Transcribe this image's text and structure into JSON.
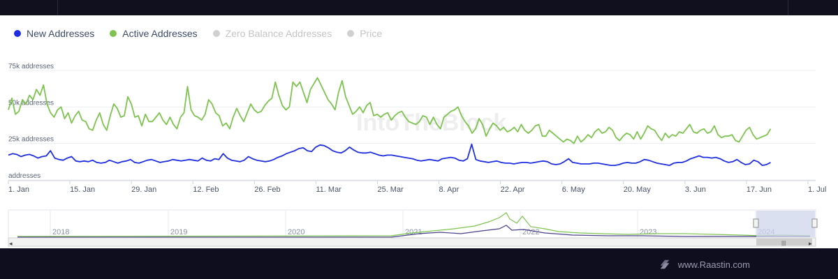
{
  "legend": [
    {
      "label": "New Addresses",
      "color": "#1e2ee0",
      "active": true
    },
    {
      "label": "Active Addresses",
      "color": "#7cc44e",
      "active": true
    },
    {
      "label": "Zero Balance Addresses",
      "color": "#c8c8c8",
      "active": false
    },
    {
      "label": "Price",
      "color": "#c8c8c8",
      "active": false
    }
  ],
  "watermark": "IntoTheBlock",
  "brand": {
    "text": "www.Raastin.com"
  },
  "navigator": {
    "years": [
      "2018",
      "2019",
      "2020",
      "2021",
      "2022",
      "2023",
      "2024"
    ],
    "scroll_handle": "|||"
  },
  "chart_data": {
    "type": "line",
    "title": "",
    "xlabel": "",
    "ylabel": "addresses",
    "ylim": [
      0,
      75000
    ],
    "ytick_values": [
      0,
      25000,
      50000,
      75000
    ],
    "ytick_labels": [
      "addresses",
      "25k addresses",
      "50k addresses",
      "75k addresses"
    ],
    "xlim": [
      0,
      182
    ],
    "xtick_days": [
      0,
      14,
      28,
      42,
      56,
      70,
      84,
      98,
      112,
      126,
      140,
      154,
      168,
      182
    ],
    "xtick_labels": [
      "1. Jan",
      "15. Jan",
      "29. Jan",
      "12. Feb",
      "26. Feb",
      "11. Mar",
      "25. Mar",
      "8. Apr",
      "22. Apr",
      "6. May",
      "20. May",
      "3. Jun",
      "17. Jun",
      "1. Jul"
    ],
    "series": [
      {
        "name": "Active Addresses",
        "color": "#7cc44e",
        "values": [
          48000,
          56000,
          45000,
          47000,
          55000,
          52000,
          58000,
          55000,
          62000,
          58000,
          65000,
          52000,
          46000,
          43000,
          48000,
          50000,
          42000,
          46000,
          39000,
          44000,
          47000,
          41000,
          40000,
          35000,
          34000,
          41000,
          46000,
          38000,
          34000,
          44000,
          52000,
          49000,
          43000,
          44000,
          57000,
          52000,
          43000,
          44000,
          37000,
          45000,
          40000,
          40000,
          43000,
          46000,
          41000,
          38000,
          43000,
          38000,
          35000,
          43000,
          46000,
          64000,
          48000,
          44000,
          43000,
          41000,
          45000,
          55000,
          52000,
          46000,
          44000,
          37000,
          39000,
          35000,
          43000,
          49000,
          44000,
          40000,
          46000,
          52000,
          48000,
          46000,
          47000,
          51000,
          54000,
          56000,
          67000,
          58000,
          51000,
          48000,
          50000,
          67000,
          64000,
          67000,
          60000,
          53000,
          62000,
          66000,
          70000,
          65000,
          60000,
          55000,
          52000,
          48000,
          60000,
          68000,
          57000,
          51000,
          45000,
          47000,
          50000,
          46000,
          51000,
          53000,
          44000,
          45000,
          43000,
          45000,
          46000,
          41000,
          44000,
          46000,
          47000,
          43000,
          40000,
          39000,
          38000,
          40000,
          44000,
          43000,
          38000,
          43000,
          38000,
          35000,
          43000,
          45000,
          47000,
          48000,
          50000,
          44000,
          40000,
          37000,
          32000,
          35000,
          42000,
          38000,
          30000,
          35000,
          39000,
          37000,
          34000,
          36000,
          33000,
          34000,
          36000,
          33000,
          38000,
          34000,
          32000,
          34000,
          37000,
          38000,
          30000,
          30000,
          34000,
          32000,
          30000,
          28000,
          26000,
          28000,
          27000,
          25000,
          30000,
          26000,
          28000,
          31000,
          29000,
          33000,
          35000,
          32000,
          33000,
          36000,
          34000,
          29000,
          27000,
          30000,
          32000,
          31000,
          28000,
          33000,
          28000,
          32000,
          37000,
          35000,
          34000,
          30000,
          27000,
          32000,
          29000,
          31000,
          30000,
          33000,
          32000,
          35000,
          38000,
          33000,
          32000,
          34000,
          35000,
          32000,
          33000,
          37000,
          31000,
          29000,
          30000,
          30000,
          31000,
          27000,
          26000,
          30000,
          34000,
          36000,
          31000,
          28000,
          29000,
          30000,
          31000,
          35000
        ],
        "note": "values sampled along time axis (x spans 0-182 days)"
      },
      {
        "name": "New Addresses",
        "color": "#1e2ee0",
        "values": [
          17000,
          18000,
          17500,
          16000,
          17000,
          17500,
          16500,
          15000,
          16000,
          16500,
          20000,
          15000,
          14000,
          13500,
          15000,
          16000,
          13000,
          12500,
          13000,
          12500,
          13500,
          12000,
          11500,
          12000,
          13500,
          12500,
          11500,
          12500,
          13000,
          14000,
          12000,
          11500,
          12500,
          13500,
          14000,
          13000,
          12000,
          12500,
          13000,
          14000,
          13500,
          13000,
          13500,
          14000,
          13500,
          13000,
          15000,
          13500,
          13000,
          14500,
          14000,
          18000,
          15000,
          13500,
          13000,
          12500,
          13500,
          16000,
          14500,
          13500,
          13000,
          12500,
          13000,
          14000,
          15500,
          16500,
          18000,
          19000,
          20000,
          21500,
          22000,
          20000,
          19500,
          22500,
          24000,
          23500,
          22000,
          20000,
          19000,
          18500,
          20000,
          22500,
          20500,
          19000,
          18500,
          18500,
          19000,
          18000,
          17000,
          16500,
          17000,
          17000,
          16500,
          16000,
          15500,
          15000,
          14500,
          13500,
          13000,
          13500,
          14000,
          13500,
          13000,
          14500,
          15000,
          15500,
          15000,
          13500,
          13000,
          14500,
          24500,
          14000,
          13000,
          12500,
          12000,
          12500,
          13000,
          12000,
          11500,
          11500,
          11000,
          11500,
          12000,
          12000,
          11500,
          12000,
          12500,
          13000,
          12500,
          11000,
          10500,
          11000,
          12500,
          14500,
          12000,
          11500,
          11000,
          11000,
          11000,
          11500,
          11500,
          11000,
          10500,
          10000,
          10000,
          10500,
          11500,
          12000,
          11500,
          11500,
          12500,
          14000,
          13500,
          12500,
          11500,
          11000,
          10500,
          10000,
          11500,
          12000,
          12000,
          13000,
          14500,
          15500,
          16500,
          15500,
          15500,
          15000,
          15500,
          14500,
          13000,
          12000,
          12500,
          14000,
          12000,
          10500,
          11000,
          13500,
          12500,
          10000,
          10500,
          12000
        ],
        "note": "values sampled along time axis (x spans 0-182 days)"
      }
    ]
  }
}
